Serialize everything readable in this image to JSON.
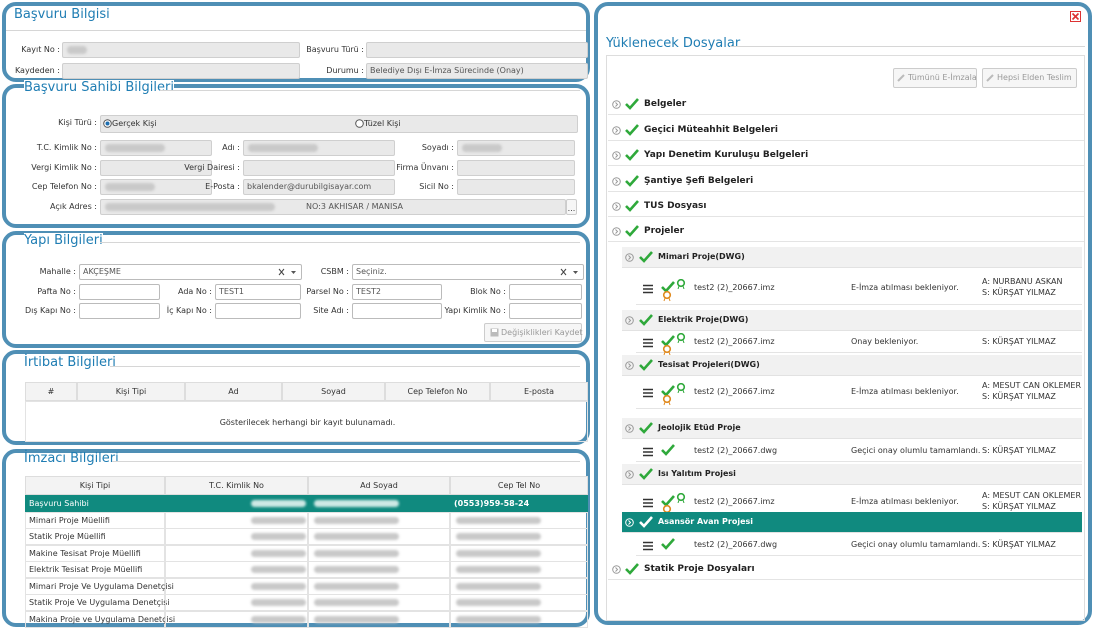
{
  "application": {
    "title": "Başvuru Bilgisi",
    "fields": [
      {
        "label": "Kayıt No :"
      },
      {
        "label": "Başvuru Türü :"
      },
      {
        "label": "Kaydeden :"
      },
      {
        "label": "Durumu :",
        "value": "Belediye Dışı E-İmza Sürecinde (Onay)"
      }
    ]
  },
  "applicant": {
    "title": "Başvuru Sahibi Bilgileri",
    "person_type": {
      "label": "Kişi Türü :",
      "options": [
        "Gerçek Kişi",
        "Tüzel Kişi"
      ]
    },
    "fields": [
      {
        "label": "T.C. Kimlik No :"
      },
      {
        "label": "Adı :"
      },
      {
        "label": "Soyadı :"
      },
      {
        "label": "Vergi Kimlik No :"
      },
      {
        "label": "Vergi Dairesi :"
      },
      {
        "label": "Firma Ünvanı :"
      },
      {
        "label": "Cep Telefon No :"
      },
      {
        "label": "E-Posta :",
        "value": "bkalender@durubilgisayar.com"
      },
      {
        "label": "Sicil No :"
      },
      {
        "label": "Açık Adres :",
        "value": "NO:3 AKHISAR / MANISA"
      }
    ],
    "address_button": "..."
  },
  "building": {
    "title": "Yapı Bilgileri",
    "fields": [
      {
        "label": "Mahalle :",
        "value": "AKÇEŞME"
      },
      {
        "label": "CSBM :",
        "value": "Seçiniz."
      },
      {
        "label": "Pafta No :"
      },
      {
        "label": "Ada No :",
        "value": "TEST1"
      },
      {
        "label": "Parsel No :",
        "value": "TEST2"
      },
      {
        "label": "Blok No :"
      },
      {
        "label": "Dış Kapı No :"
      },
      {
        "label": "İç Kapı No :"
      },
      {
        "label": "Site Adı :"
      },
      {
        "label": "Yapı Kimlik No :"
      }
    ],
    "save_button": "Değişiklikleri Kaydet"
  },
  "contact": {
    "title": "İrtibat Bilgileri",
    "columns": [
      "#",
      "Kişi Tipi",
      "Ad",
      "Soyad",
      "Cep Telefon No",
      "E-posta"
    ],
    "empty_message": "Gösterilecek herhangi bir kayıt bulunamadı."
  },
  "signers": {
    "title": "İmzacı Bilgileri",
    "columns": [
      "Kişi Tipi",
      "T.C. Kimlik No",
      "Ad Soyad",
      "Cep Tel No"
    ],
    "rows": [
      {
        "type": "Başvuru Sahibi",
        "phone": "(0553)959-58-24"
      },
      {
        "type": "Mimari Proje Müellifi"
      },
      {
        "type": "Statik Proje Müellifi"
      },
      {
        "type": "Makine Tesisat Proje Müellifi"
      },
      {
        "type": "Elektrik Tesisat Proje Müellifi"
      },
      {
        "type": "Mimari Proje Ve Uygulama Denetçisi"
      },
      {
        "type": "Statik Proje Ve Uygulama Denetçisi"
      },
      {
        "type": "Makina Proje ve Uygulama Denetçisi"
      }
    ]
  },
  "files": {
    "title": "Yüklenecek Dosyalar",
    "buttons": [
      "Tümünü E-İmzala",
      "Hepsi Elden Teslim"
    ],
    "groups": [
      "Belgeler",
      "Geçici Müteahhit Belgeleri",
      "Yapı Denetim Kuruluşu Belgeleri",
      "Şantiye Şefi Belgeleri",
      "TUS Dosyası",
      "Projeler",
      "Statik Proje Dosyaları"
    ],
    "projects": [
      {
        "name": "Mimari Proje(DWG)",
        "file": "test2 (2)_20667.imz",
        "status": "E-İmza atılması bekleniyor.",
        "signers": [
          "A: NURBANU ASKAN",
          "S: KÜRŞAT YILMAZ"
        ]
      },
      {
        "name": "Elektrik Proje(DWG)",
        "file": "test2 (2)_20667.imz",
        "status": "Onay bekleniyor.",
        "signers": [
          "S: KÜRŞAT YILMAZ"
        ]
      },
      {
        "name": "Tesisat Projeleri(DWG)",
        "file": "test2 (2)_20667.imz",
        "status": "E-İmza atılması bekleniyor.",
        "signers": [
          "A: MESUT CAN OKLEMER",
          "S: KÜRŞAT YILMAZ"
        ]
      },
      {
        "name": "Jeolojik Etüd Proje",
        "file": "test2 (2)_20667.dwg",
        "status": "Geçici onay olumlu tamamlandı.",
        "signers": [
          "S: KÜRŞAT YILMAZ"
        ]
      },
      {
        "name": "Isı Yalıtım Projesi",
        "file": "test2 (2)_20667.imz",
        "status": "E-İmza atılması bekleniyor.",
        "signers": [
          "A: MESUT CAN OKLEMER",
          "S: KÜRŞAT YILMAZ"
        ]
      },
      {
        "name": "Asansör Avan Projesi",
        "file": "test2 (2)_20667.dwg",
        "status": "Geçici onay olumlu tamamlandı.",
        "signers": [
          "S: KÜRŞAT YILMAZ"
        ]
      }
    ]
  }
}
